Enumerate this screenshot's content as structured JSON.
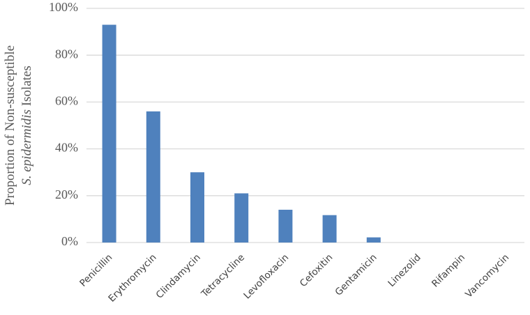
{
  "chart_data": {
    "type": "bar",
    "y_label": [
      "Proportion of Non-susceptible",
      "S. epidermidis",
      "Isolates"
    ],
    "categories": [
      "Penicillin",
      "Erythromycin",
      "Clindamycin",
      "Tetracycline",
      "Levofloxacin",
      "Cefoxitin",
      "Gentamicin",
      "Linezolid",
      "Rifampin",
      "Vancomycin"
    ],
    "values": [
      93,
      56,
      30,
      21,
      14,
      11.7,
      2.2,
      0,
      0,
      0
    ],
    "color": "#4f81bd",
    "ylim": [
      0,
      100
    ],
    "yticks": [
      {
        "value": 0,
        "label": "0%"
      },
      {
        "value": 20,
        "label": "20%"
      },
      {
        "value": 40,
        "label": "40%"
      },
      {
        "value": 60,
        "label": "60%"
      },
      {
        "value": 80,
        "label": "80%"
      },
      {
        "value": 100,
        "label": "100%"
      }
    ],
    "grid": true
  }
}
